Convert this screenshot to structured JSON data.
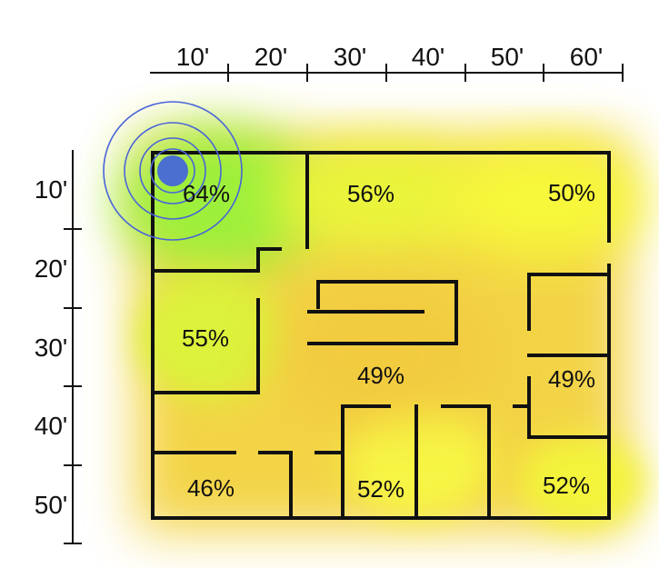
{
  "ruler": {
    "horizontal_labels": [
      "10'",
      "20'",
      "30'",
      "40'",
      "50'",
      "60'"
    ],
    "vertical_labels": [
      "10'",
      "20'",
      "30'",
      "40'",
      "50'"
    ]
  },
  "rooms": [
    {
      "id": "top-left",
      "coverage": "64%"
    },
    {
      "id": "top-middle",
      "coverage": "56%"
    },
    {
      "id": "top-right",
      "coverage": "50%"
    },
    {
      "id": "middle-left",
      "coverage": "55%"
    },
    {
      "id": "center",
      "coverage": "49%"
    },
    {
      "id": "middle-right",
      "coverage": "49%"
    },
    {
      "id": "bottom-left",
      "coverage": "46%"
    },
    {
      "id": "bottom-middle",
      "coverage": "52%"
    },
    {
      "id": "bottom-right",
      "coverage": "52%"
    }
  ],
  "colors": {
    "walls": "#111111",
    "access_point": "#4a6fd1",
    "signal_rings": "#4a64d8",
    "heat_strong": "#9cf03a",
    "heat_medium": "#f7f83a",
    "heat_weak": "#f5c43a"
  }
}
